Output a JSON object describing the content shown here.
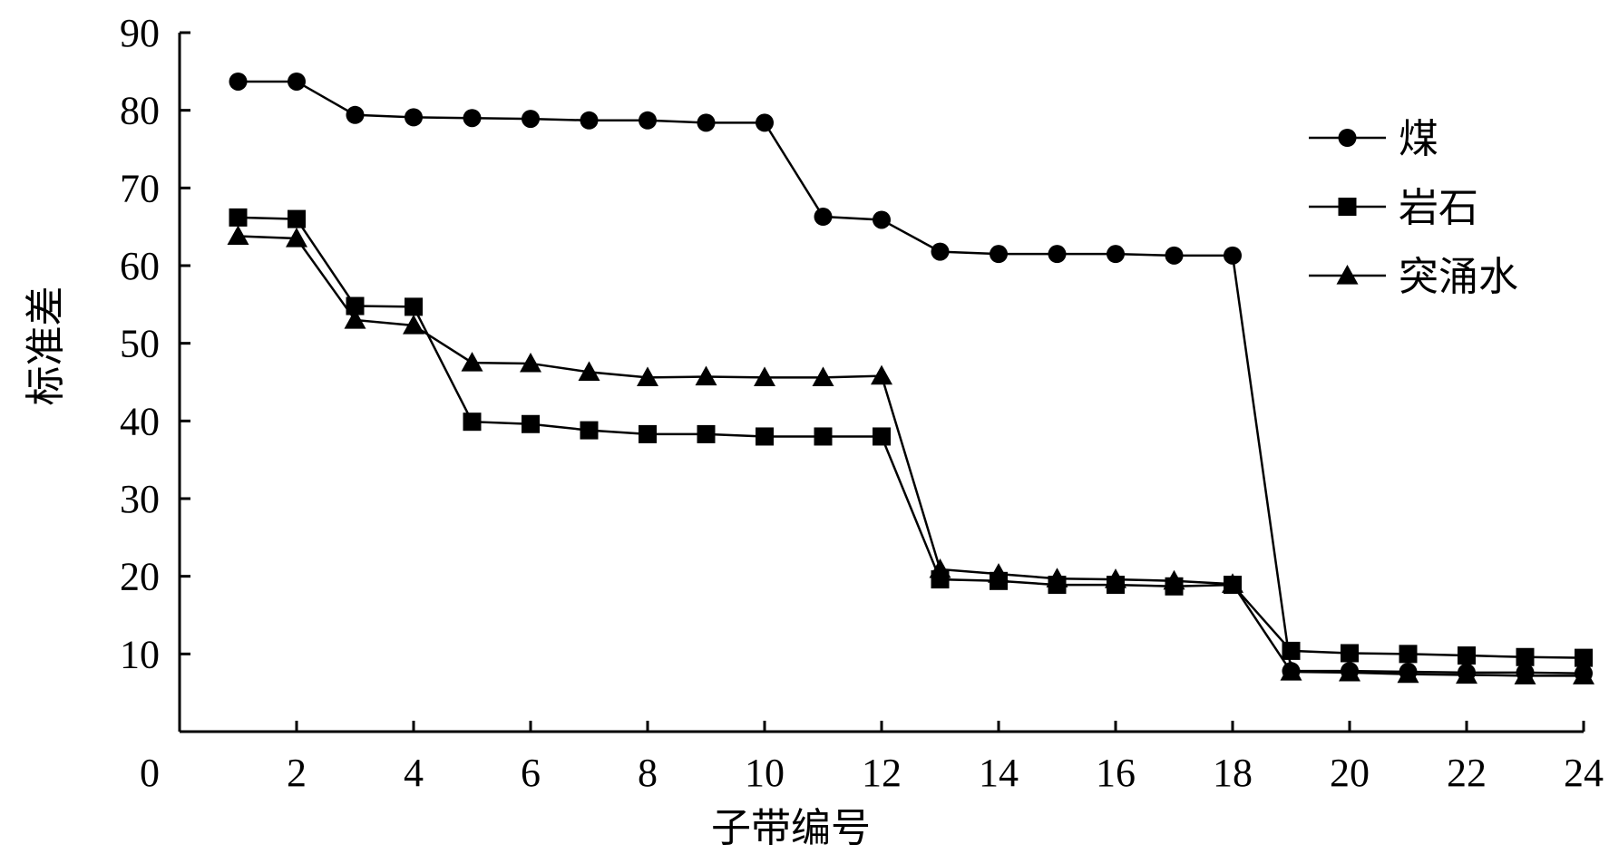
{
  "chart_data": {
    "type": "line",
    "title": "",
    "xlabel": "子带编号",
    "ylabel": "标准差",
    "xlim": [
      0,
      24
    ],
    "ylim": [
      0,
      90
    ],
    "x_ticks": [
      0,
      2,
      4,
      6,
      8,
      10,
      12,
      14,
      16,
      18,
      20,
      22,
      24
    ],
    "y_ticks": [
      10,
      20,
      30,
      40,
      50,
      60,
      70,
      80,
      90
    ],
    "grid": false,
    "legend_position": "top-right",
    "x": [
      1,
      2,
      3,
      4,
      5,
      6,
      7,
      8,
      9,
      10,
      11,
      12,
      13,
      14,
      15,
      16,
      17,
      18,
      19,
      20,
      21,
      22,
      23,
      24
    ],
    "series": [
      {
        "name": "煤",
        "marker": "circle",
        "color": "#000000",
        "values": [
          83.7,
          83.7,
          79.4,
          79.1,
          79.0,
          78.9,
          78.7,
          78.7,
          78.4,
          78.4,
          66.3,
          65.9,
          61.8,
          61.5,
          61.5,
          61.5,
          61.3,
          61.3,
          7.8,
          7.8,
          7.7,
          7.6,
          7.6,
          7.5
        ]
      },
      {
        "name": "岩石",
        "marker": "square",
        "color": "#000000",
        "values": [
          66.2,
          66.0,
          54.8,
          54.7,
          39.9,
          39.6,
          38.8,
          38.3,
          38.3,
          38.0,
          38.0,
          38.0,
          19.6,
          19.4,
          18.9,
          18.9,
          18.7,
          18.9,
          10.4,
          10.1,
          10.0,
          9.8,
          9.6,
          9.5
        ]
      },
      {
        "name": "突涌水",
        "marker": "triangle",
        "color": "#000000",
        "values": [
          63.8,
          63.5,
          53.0,
          52.3,
          47.5,
          47.4,
          46.3,
          45.6,
          45.7,
          45.6,
          45.6,
          45.8,
          20.9,
          20.3,
          19.7,
          19.6,
          19.4,
          19.0,
          7.7,
          7.6,
          7.4,
          7.3,
          7.2,
          7.2
        ]
      }
    ]
  }
}
